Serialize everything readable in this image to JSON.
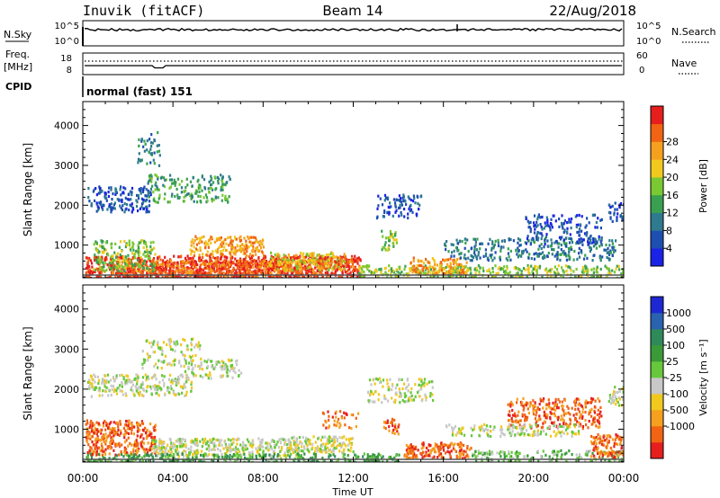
{
  "header": {
    "station": "Inuvik (fitACF)",
    "beam": "Beam 14",
    "date": "22/Aug/2018"
  },
  "panels": {
    "nsky": {
      "left_label": "N.Sky",
      "right_label": "N.Search",
      "left_top": "10^5",
      "left_bottom": "10^0",
      "right_top": "10^5",
      "right_bottom": "10^0"
    },
    "freq": {
      "left_label_line1": "Freq.",
      "left_label_line2": "[MHz]",
      "right_label": "Nave",
      "left_top": "18",
      "left_bottom": "8",
      "right_top": "60",
      "right_bottom": "0"
    },
    "cpid": {
      "label": "CPID",
      "value": "normal (fast) 151"
    }
  },
  "chart_data": [
    {
      "type": "heatmap",
      "title": "",
      "quantity": "Power",
      "xlabel": "Time UT",
      "ylabel": "Slant Range [km]",
      "x_ticks": [
        "00:00",
        "04:00",
        "08:00",
        "12:00",
        "16:00",
        "20:00",
        "00:00"
      ],
      "xlim_hours": [
        0,
        24
      ],
      "ylim": [
        180,
        4600
      ],
      "y_ticks": [
        1000,
        2000,
        3000,
        4000
      ],
      "colorbar": {
        "label": "Power [dB]",
        "ticks": [
          "4",
          "8",
          "12",
          "16",
          "20",
          "24",
          "28"
        ],
        "colors": [
          "#1a22e6",
          "#1e4fb0",
          "#2f7a8e",
          "#38a050",
          "#7ac832",
          "#f0c81e",
          "#f5a01e",
          "#f06414",
          "#e61e1e"
        ]
      },
      "regions": [
        {
          "x": [
            0.1,
            12.3
          ],
          "y": [
            190,
            760
          ],
          "level": 8,
          "density": 0.9
        },
        {
          "x": [
            1.2,
            10.6
          ],
          "y": [
            240,
            650
          ],
          "level": 7,
          "density": 0.9
        },
        {
          "x": [
            4.7,
            8.0
          ],
          "y": [
            760,
            1250
          ],
          "level": 6,
          "density": 0.75
        },
        {
          "x": [
            0.4,
            3.2
          ],
          "y": [
            380,
            1150
          ],
          "level": 4,
          "density": 0.6
        },
        {
          "x": [
            12.2,
            24.0
          ],
          "y": [
            190,
            520
          ],
          "level": 4,
          "density": 0.65
        },
        {
          "x": [
            14.5,
            17.0
          ],
          "y": [
            300,
            720
          ],
          "level": 6,
          "density": 0.7
        },
        {
          "x": [
            8.2,
            11.6
          ],
          "y": [
            400,
            850
          ],
          "level": 5,
          "density": 0.7
        },
        {
          "x": [
            10.4,
            12.0
          ],
          "y": [
            480,
            720
          ],
          "level": 7,
          "density": 0.8
        },
        {
          "x": [
            16.0,
            23.6
          ],
          "y": [
            650,
            1200
          ],
          "level": 2,
          "density": 0.45
        },
        {
          "x": [
            19.6,
            23.0
          ],
          "y": [
            1050,
            1800
          ],
          "level": 1,
          "density": 0.4
        },
        {
          "x": [
            13.0,
            15.0
          ],
          "y": [
            1700,
            2300
          ],
          "level": 1,
          "density": 0.45
        },
        {
          "x": [
            0.2,
            3.0
          ],
          "y": [
            1850,
            2500
          ],
          "level": 1,
          "density": 0.55
        },
        {
          "x": [
            2.8,
            6.5
          ],
          "y": [
            2100,
            2800
          ],
          "level": 3,
          "density": 0.45
        },
        {
          "x": [
            2.4,
            3.4
          ],
          "y": [
            3000,
            3900
          ],
          "level": 2,
          "density": 0.3
        },
        {
          "x": [
            13.2,
            13.9
          ],
          "y": [
            900,
            1400
          ],
          "level": 4,
          "density": 0.6
        },
        {
          "x": [
            23.3,
            24.0
          ],
          "y": [
            1600,
            2100
          ],
          "level": 1,
          "density": 0.6
        }
      ]
    },
    {
      "type": "heatmap",
      "title": "",
      "quantity": "Velocity",
      "xlabel": "Time UT",
      "ylabel": "Slant Range [km]",
      "x_ticks": [
        "00:00",
        "04:00",
        "08:00",
        "12:00",
        "16:00",
        "20:00",
        "00:00"
      ],
      "xlim_hours": [
        0,
        24
      ],
      "ylim": [
        180,
        4600
      ],
      "y_ticks": [
        1000,
        2000,
        3000,
        4000
      ],
      "colorbar": {
        "label": "Velocity [m s⁻¹]",
        "ticks": [
          "1000",
          "500",
          "100",
          "25",
          "-25",
          "-100",
          "-500",
          "-1000"
        ],
        "colors": [
          "#1e28d2",
          "#2a62b0",
          "#2f8a5a",
          "#3a9a3a",
          "#66c83a",
          "#c8c8c8",
          "#f0c81e",
          "#f5a01e",
          "#f06414",
          "#e61e1e"
        ]
      },
      "regions": [
        {
          "x": [
            0.1,
            3.2
          ],
          "y": [
            380,
            1250
          ],
          "level": 8,
          "density": 0.8
        },
        {
          "x": [
            3.0,
            9.5
          ],
          "y": [
            350,
            800
          ],
          "level": 5,
          "density": 0.85
        },
        {
          "x": [
            9.0,
            12.0
          ],
          "y": [
            450,
            850
          ],
          "level": 5,
          "density": 0.8
        },
        {
          "x": [
            0.1,
            14.0
          ],
          "y": [
            190,
            420
          ],
          "level": 3,
          "density": 0.65
        },
        {
          "x": [
            14.2,
            17.2
          ],
          "y": [
            300,
            700
          ],
          "level": 8,
          "density": 0.85
        },
        {
          "x": [
            17.2,
            24.0
          ],
          "y": [
            190,
            500
          ],
          "level": 4,
          "density": 0.5
        },
        {
          "x": [
            22.5,
            24.0
          ],
          "y": [
            300,
            900
          ],
          "level": 8,
          "density": 0.8
        },
        {
          "x": [
            18.8,
            23.0
          ],
          "y": [
            1050,
            1800
          ],
          "level": 8,
          "density": 0.55
        },
        {
          "x": [
            16.0,
            22.0
          ],
          "y": [
            850,
            1150
          ],
          "level": 5,
          "density": 0.5
        },
        {
          "x": [
            0.2,
            4.8
          ],
          "y": [
            1850,
            2400
          ],
          "level": 5,
          "density": 0.6
        },
        {
          "x": [
            2.6,
            5.2
          ],
          "y": [
            2550,
            3300
          ],
          "level": 5,
          "density": 0.35
        },
        {
          "x": [
            4.5,
            7.0
          ],
          "y": [
            2300,
            2800
          ],
          "level": 5,
          "density": 0.45
        },
        {
          "x": [
            12.6,
            15.5
          ],
          "y": [
            1700,
            2300
          ],
          "level": 5,
          "density": 0.45
        },
        {
          "x": [
            13.3,
            14.0
          ],
          "y": [
            900,
            1300
          ],
          "level": 8,
          "density": 0.6
        },
        {
          "x": [
            10.5,
            12.2
          ],
          "y": [
            1000,
            1500
          ],
          "level": 8,
          "density": 0.3
        },
        {
          "x": [
            23.3,
            24.0
          ],
          "y": [
            1600,
            2100
          ],
          "level": 5,
          "density": 0.6
        }
      ]
    }
  ]
}
